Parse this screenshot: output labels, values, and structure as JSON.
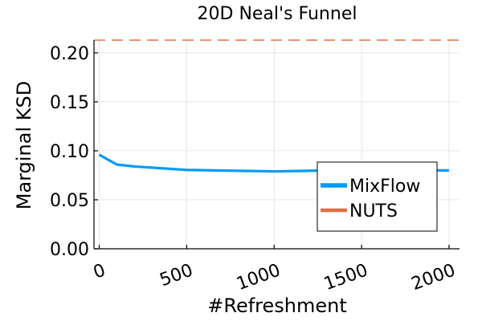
{
  "chart_data": {
    "type": "line",
    "title": "20D Neal's Funnel",
    "xlabel": "#Refreshment",
    "ylabel": "Marginal KSD",
    "xlim": [
      -30,
      2060
    ],
    "ylim": [
      0,
      0.213
    ],
    "x_ticks": [
      0,
      500,
      1000,
      1500,
      2000
    ],
    "x_tick_labels": [
      "0",
      "500",
      "1000",
      "1500",
      "2000"
    ],
    "y_ticks": [
      0,
      0.05,
      0.1,
      0.15,
      0.2
    ],
    "y_tick_labels": [
      "0.00",
      "0.05",
      "0.10",
      "0.15",
      "0.20"
    ],
    "grid": true,
    "legend_position": "bottom-right",
    "series": [
      {
        "name": "MixFlow",
        "color": "#009AF9",
        "style": "solid",
        "x": [
          0,
          100,
          200,
          500,
          1000,
          1500,
          2000
        ],
        "y": [
          0.096,
          0.086,
          0.084,
          0.0805,
          0.079,
          0.0805,
          0.08
        ]
      },
      {
        "name": "NUTS",
        "color": "#E26F46",
        "style": "dashed",
        "x": [
          -30,
          2060
        ],
        "y": [
          0.213,
          0.213
        ]
      }
    ]
  }
}
